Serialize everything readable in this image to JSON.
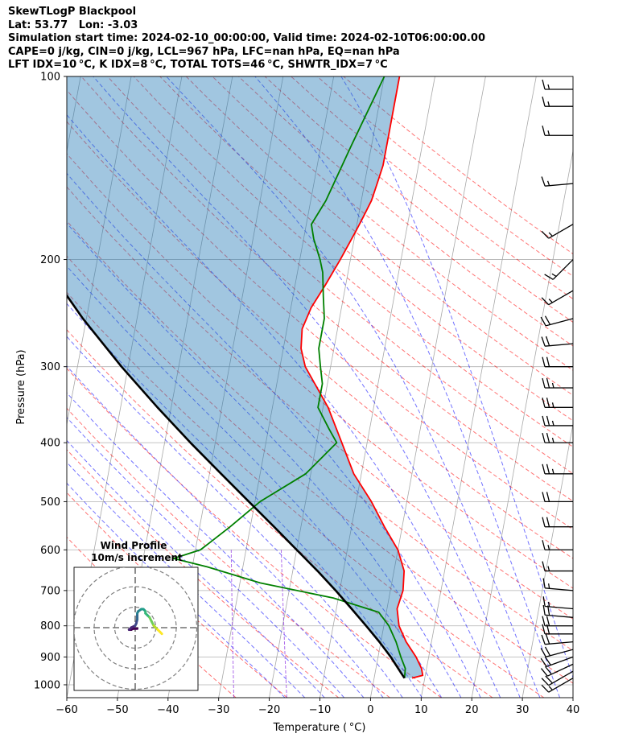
{
  "header": {
    "title": "SkewTLogP Blackpool",
    "location": "Lat: 53.77   Lon: -3.03",
    "times": "Simulation start time: 2024-02-10_00:00:00, Valid time: 2024-02-10T06:00:00.00",
    "parcel_indices": "CAPE=0 j/kg, CIN=0 j/kg, LCL=967 hPa, LFC=nan hPa, EQ=nan hPa",
    "stability_indices": "LFT IDX=10 °C, K IDX=8 °C, TOTAL TOTS=46 °C, SHWTR_IDX=7 °C"
  },
  "chart_data": {
    "type": "line",
    "subtype": "skew-T log-P diagram",
    "xlabel": "Temperature ( °C)",
    "ylabel": "Pressure (hPa)",
    "xlim": [
      -60,
      40
    ],
    "ylim": [
      1050,
      100
    ],
    "y_scale": "log",
    "x_ticks": [
      "−60",
      "−50",
      "−40",
      "−30",
      "−20",
      "−10",
      "0",
      "10",
      "20",
      "30",
      "40"
    ],
    "y_ticks": [
      "100",
      "200",
      "300",
      "400",
      "500",
      "600",
      "700",
      "800",
      "900",
      "1000"
    ],
    "grid": true,
    "series": [
      {
        "role": "temperature",
        "color": "#ff0000",
        "points": [
          [
            975,
            7.5
          ],
          [
            965,
            9.5
          ],
          [
            940,
            9
          ],
          [
            900,
            7.5
          ],
          [
            850,
            5
          ],
          [
            800,
            3
          ],
          [
            750,
            2
          ],
          [
            700,
            2.5
          ],
          [
            650,
            2
          ],
          [
            600,
            0
          ],
          [
            550,
            -3.5
          ],
          [
            500,
            -7
          ],
          [
            450,
            -11.5
          ],
          [
            400,
            -15
          ],
          [
            350,
            -19
          ],
          [
            300,
            -25
          ],
          [
            280,
            -26.5
          ],
          [
            260,
            -27
          ],
          [
            240,
            -26
          ],
          [
            220,
            -24
          ],
          [
            200,
            -22
          ],
          [
            180,
            -20
          ],
          [
            170,
            -19
          ],
          [
            160,
            -18
          ],
          [
            150,
            -17.5
          ],
          [
            140,
            -17
          ],
          [
            130,
            -17
          ],
          [
            120,
            -17
          ],
          [
            110,
            -17
          ],
          [
            100,
            -17
          ]
        ]
      },
      {
        "role": "dewpoint",
        "color": "#008000",
        "points": [
          [
            975,
            6
          ],
          [
            940,
            5.8
          ],
          [
            900,
            4.5
          ],
          [
            850,
            3
          ],
          [
            800,
            1
          ],
          [
            760,
            -1.5
          ],
          [
            720,
            -11
          ],
          [
            680,
            -26
          ],
          [
            640,
            -37
          ],
          [
            620,
            -44
          ],
          [
            600,
            -39
          ],
          [
            550,
            -34
          ],
          [
            500,
            -29
          ],
          [
            450,
            -21
          ],
          [
            400,
            -16
          ],
          [
            380,
            -18
          ],
          [
            350,
            -21
          ],
          [
            320,
            -21
          ],
          [
            300,
            -22
          ],
          [
            280,
            -23
          ],
          [
            250,
            -23
          ],
          [
            230,
            -24
          ],
          [
            210,
            -25
          ],
          [
            200,
            -26
          ],
          [
            185,
            -28
          ],
          [
            175,
            -29
          ],
          [
            160,
            -27
          ],
          [
            130,
            -24
          ],
          [
            100,
            -20
          ]
        ]
      },
      {
        "role": "parcel profile",
        "color": "#000000",
        "points": [
          [
            975,
            6
          ],
          [
            960,
            5.3
          ],
          [
            900,
            2.5
          ],
          [
            850,
            -0.3
          ],
          [
            800,
            -3.5
          ],
          [
            750,
            -7
          ],
          [
            700,
            -10.8
          ],
          [
            650,
            -15.1
          ],
          [
            600,
            -20
          ],
          [
            550,
            -25.3
          ],
          [
            500,
            -31.2
          ],
          [
            450,
            -37.7
          ],
          [
            400,
            -44.9
          ],
          [
            350,
            -52.7
          ],
          [
            300,
            -61.3
          ],
          [
            250,
            -70.7
          ],
          [
            200,
            -81
          ],
          [
            150,
            -92
          ],
          [
            100,
            -104
          ]
        ]
      }
    ],
    "wind_barbs": [
      {
        "p": 975,
        "dir": 240,
        "spd_kt": 15
      },
      {
        "p": 950,
        "dir": 240,
        "spd_kt": 20
      },
      {
        "p": 925,
        "dir": 245,
        "spd_kt": 20
      },
      {
        "p": 900,
        "dir": 250,
        "spd_kt": 20
      },
      {
        "p": 875,
        "dir": 255,
        "spd_kt": 20
      },
      {
        "p": 850,
        "dir": 265,
        "spd_kt": 20
      },
      {
        "p": 825,
        "dir": 270,
        "spd_kt": 20
      },
      {
        "p": 800,
        "dir": 270,
        "spd_kt": 20
      },
      {
        "p": 775,
        "dir": 275,
        "spd_kt": 20
      },
      {
        "p": 750,
        "dir": 275,
        "spd_kt": 15
      },
      {
        "p": 700,
        "dir": 275,
        "spd_kt": 15
      },
      {
        "p": 650,
        "dir": 270,
        "spd_kt": 15
      },
      {
        "p": 600,
        "dir": 270,
        "spd_kt": 15
      },
      {
        "p": 550,
        "dir": 270,
        "spd_kt": 20
      },
      {
        "p": 500,
        "dir": 270,
        "spd_kt": 20
      },
      {
        "p": 450,
        "dir": 270,
        "spd_kt": 25
      },
      {
        "p": 400,
        "dir": 270,
        "spd_kt": 25
      },
      {
        "p": 375,
        "dir": 270,
        "spd_kt": 25
      },
      {
        "p": 350,
        "dir": 270,
        "spd_kt": 25
      },
      {
        "p": 325,
        "dir": 270,
        "spd_kt": 25
      },
      {
        "p": 300,
        "dir": 270,
        "spd_kt": 20
      },
      {
        "p": 275,
        "dir": 265,
        "spd_kt": 20
      },
      {
        "p": 250,
        "dir": 255,
        "spd_kt": 20
      },
      {
        "p": 225,
        "dir": 240,
        "spd_kt": 15
      },
      {
        "p": 200,
        "dir": 225,
        "spd_kt": 15
      },
      {
        "p": 175,
        "dir": 240,
        "spd_kt": 15
      },
      {
        "p": 150,
        "dir": 265,
        "spd_kt": 15
      },
      {
        "p": 125,
        "dir": 270,
        "spd_kt": 15
      },
      {
        "p": 112,
        "dir": 270,
        "spd_kt": 15
      },
      {
        "p": 105,
        "dir": 270,
        "spd_kt": 15
      }
    ],
    "hodograph": {
      "title": "Wind Profile",
      "subtitle": "10m/s increment",
      "ring_speeds_ms": [
        10,
        20,
        30
      ],
      "colormap": "viridis",
      "points": [
        [
          1,
          -0.5
        ],
        [
          -1,
          -0.5
        ],
        [
          -2,
          -1
        ],
        [
          -3,
          -1
        ],
        [
          -2,
          0
        ],
        [
          0,
          1
        ],
        [
          0.5,
          2
        ],
        [
          1,
          4
        ],
        [
          1,
          5
        ],
        [
          1,
          6
        ],
        [
          1,
          7
        ],
        [
          1.5,
          8
        ],
        [
          3,
          9
        ],
        [
          4,
          9
        ],
        [
          5,
          8
        ],
        [
          5,
          7
        ],
        [
          6,
          6
        ],
        [
          7,
          5
        ],
        [
          8,
          3
        ],
        [
          9,
          1
        ],
        [
          10,
          0
        ],
        [
          11,
          -1
        ],
        [
          12,
          -2
        ],
        [
          13,
          -3
        ]
      ]
    }
  }
}
